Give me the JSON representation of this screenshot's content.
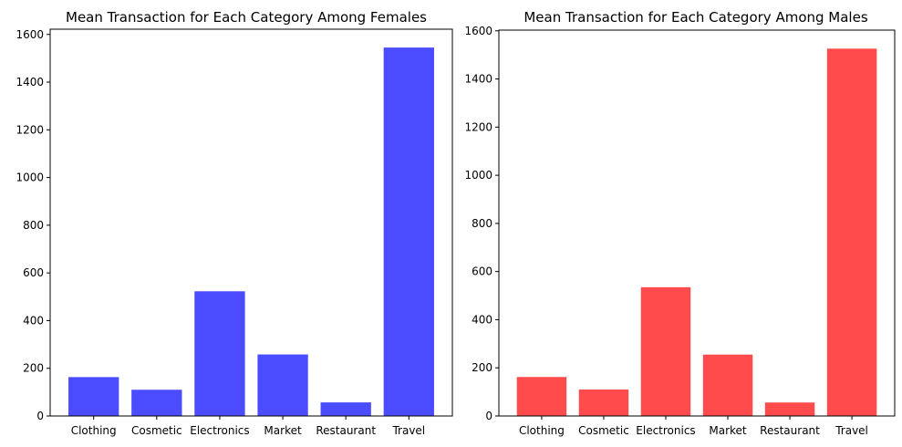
{
  "chart_data": [
    {
      "type": "bar",
      "title": "Mean Transaction for Each Category Among Females",
      "xlabel": "",
      "ylabel": "",
      "categories": [
        "Clothing",
        "Cosmetic",
        "Electronics",
        "Market",
        "Restaurant",
        "Travel"
      ],
      "values": [
        163,
        110,
        523,
        258,
        57,
        1545
      ],
      "yticks": [
        0,
        200,
        400,
        600,
        800,
        1000,
        1200,
        1400,
        1600
      ],
      "ylim": [
        0,
        1622
      ],
      "bar_color": "#4b4bff",
      "grid": false,
      "legend": "none"
    },
    {
      "type": "bar",
      "title": "Mean Transaction for Each Category Among Males",
      "xlabel": "",
      "ylabel": "",
      "categories": [
        "Clothing",
        "Cosmetic",
        "Electronics",
        "Market",
        "Restaurant",
        "Travel"
      ],
      "values": [
        162,
        110,
        535,
        255,
        56,
        1526
      ],
      "yticks": [
        0,
        200,
        400,
        600,
        800,
        1000,
        1200,
        1400,
        1600
      ],
      "ylim": [
        0,
        1603
      ],
      "bar_color": "#ff4b4b",
      "grid": false,
      "legend": "none"
    }
  ]
}
